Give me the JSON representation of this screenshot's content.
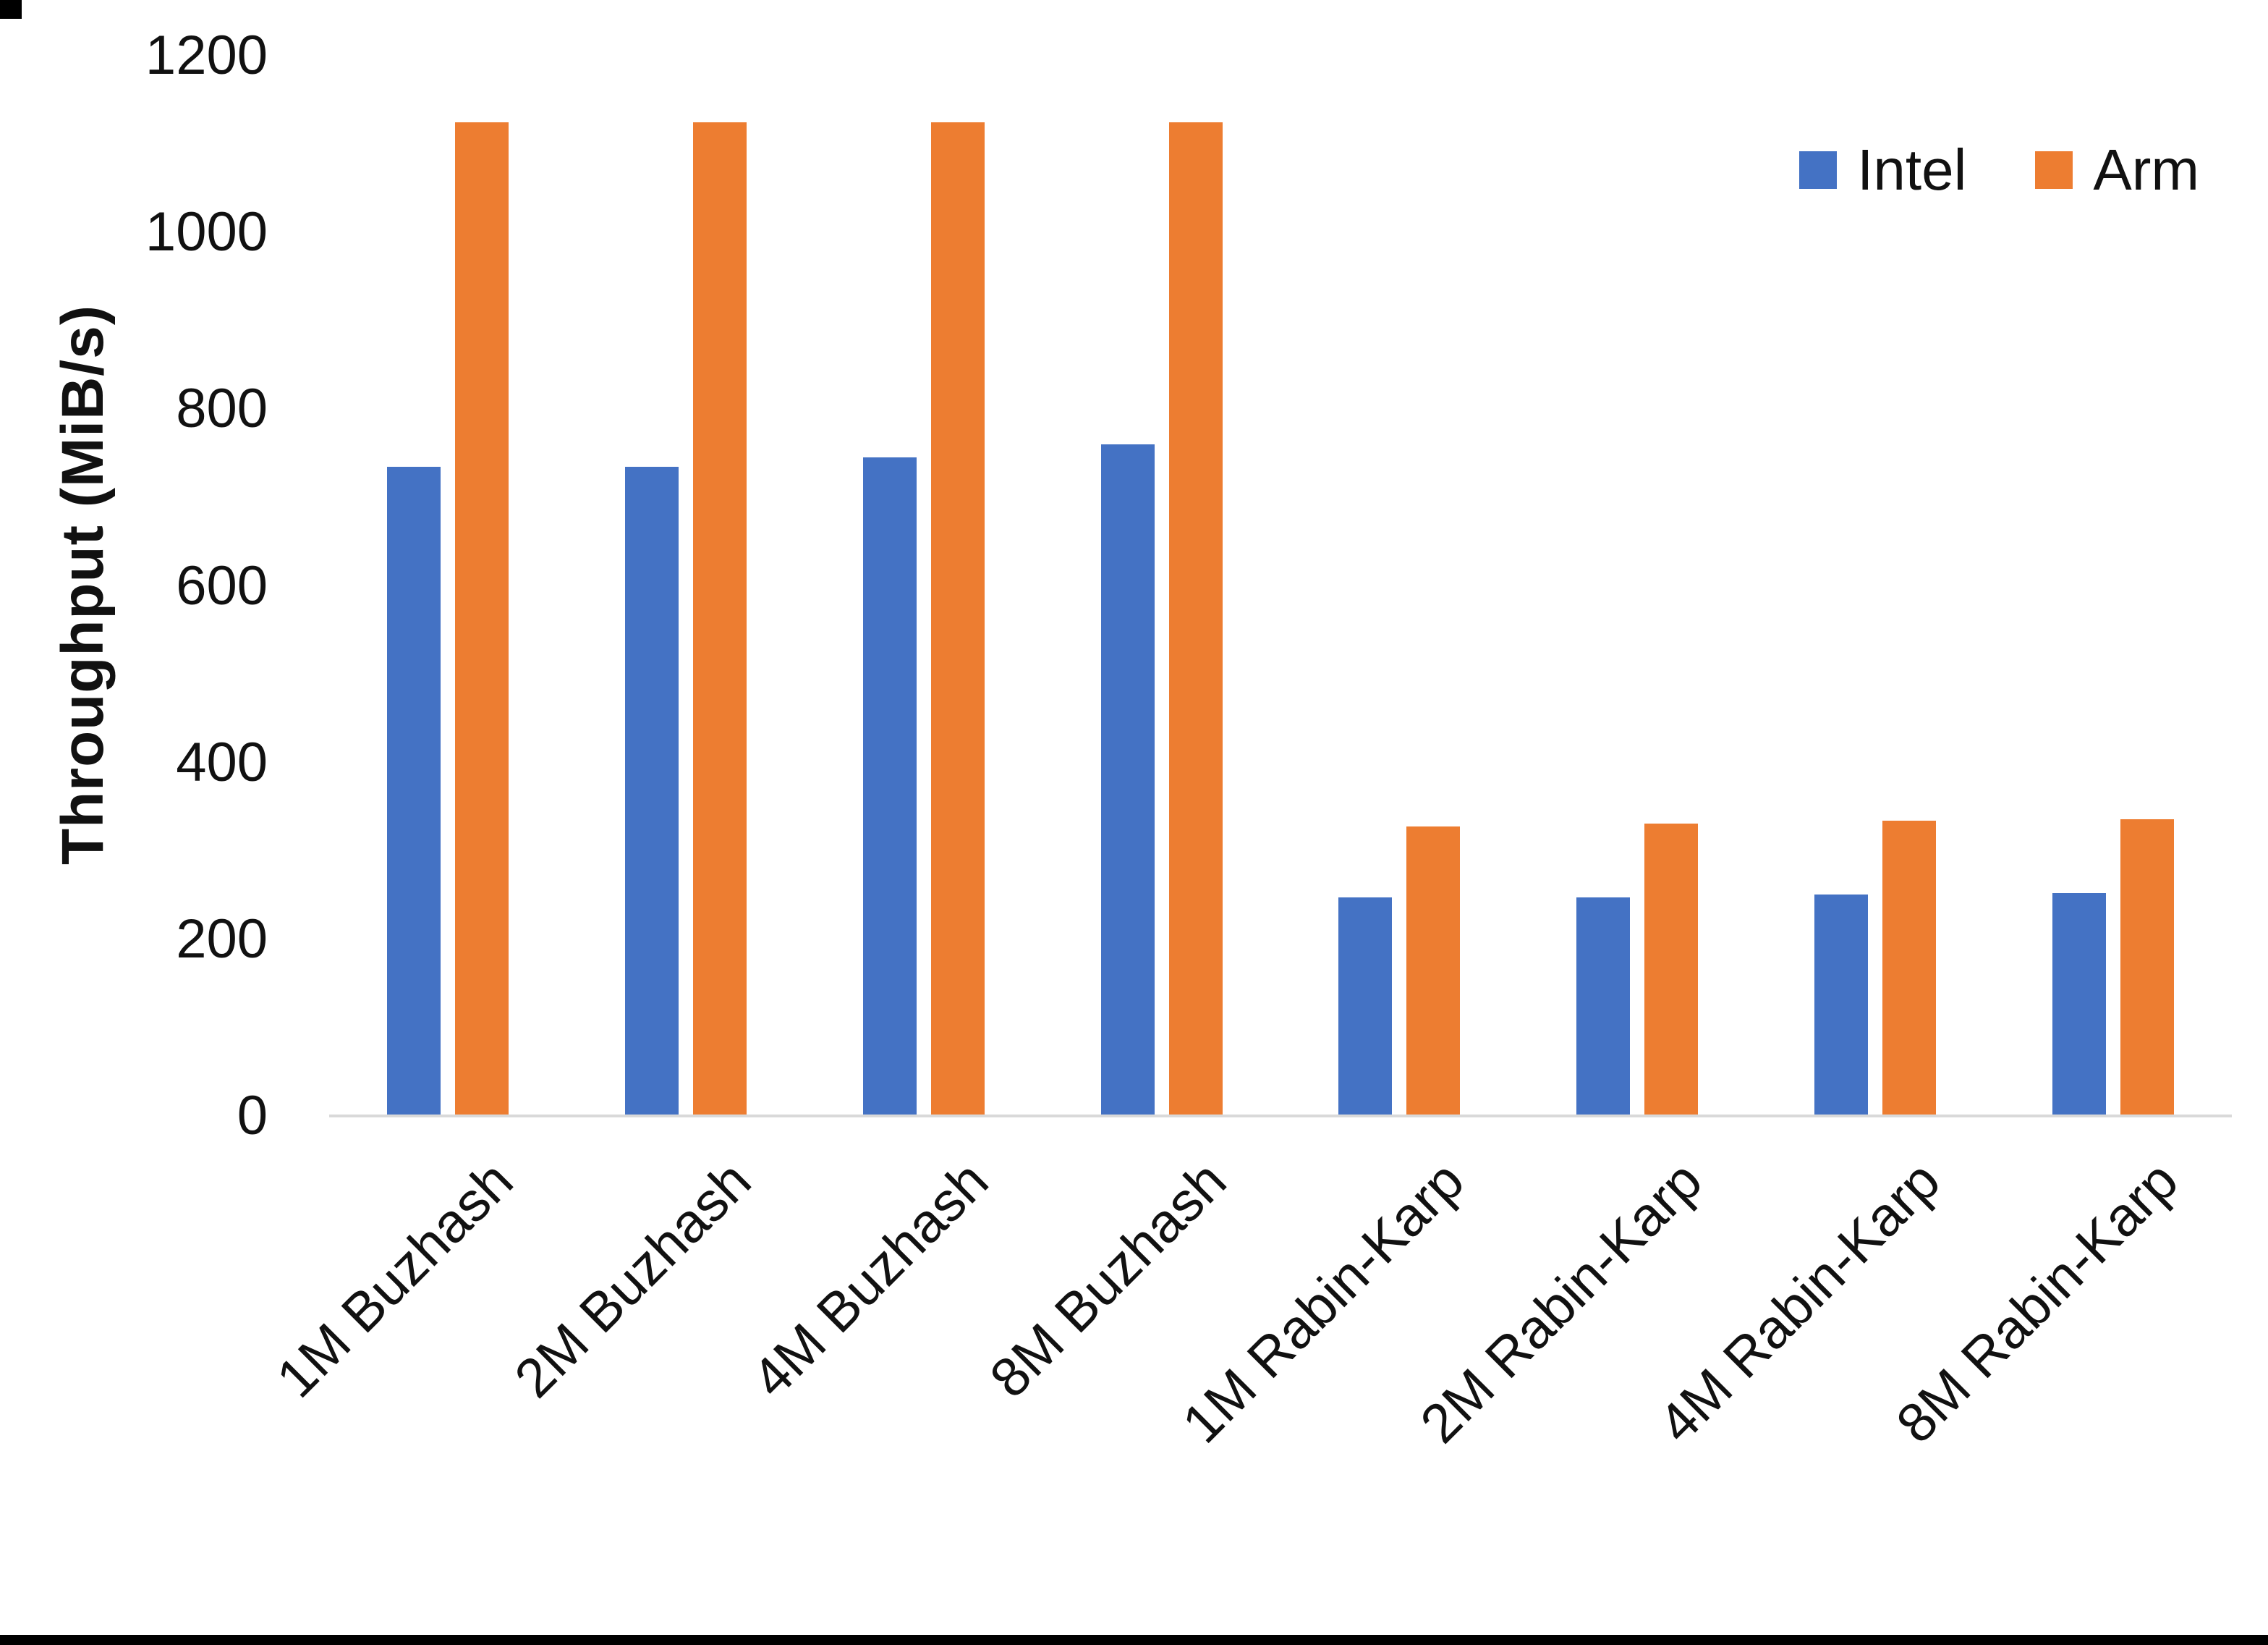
{
  "chart_data": {
    "type": "bar",
    "title": "",
    "xlabel": "",
    "ylabel": "Throughput (MiB/s)",
    "categories": [
      "1M Buzhash",
      "2M Buzhash",
      "4M Buzhash",
      "8M Buzhash",
      "1M Rabin-Karp",
      "2M Rabin-Karp",
      "4M Rabin-Karp",
      "8M Rabin-Karp"
    ],
    "series": [
      {
        "name": "Intel",
        "color": "#4472C4",
        "values": [
          735,
          735,
          745,
          760,
          247,
          247,
          251,
          252
        ]
      },
      {
        "name": "Arm",
        "color": "#ED7D31",
        "values": [
          1125,
          1125,
          1125,
          1125,
          328,
          331,
          334,
          336
        ]
      }
    ],
    "ylim": [
      0,
      1200
    ],
    "yticks": [
      0,
      200,
      400,
      600,
      800,
      1000,
      1200
    ],
    "grid": false,
    "legend_position": "top-right",
    "axis_line_color": "#d9d9d9",
    "text_color": "#111111"
  }
}
